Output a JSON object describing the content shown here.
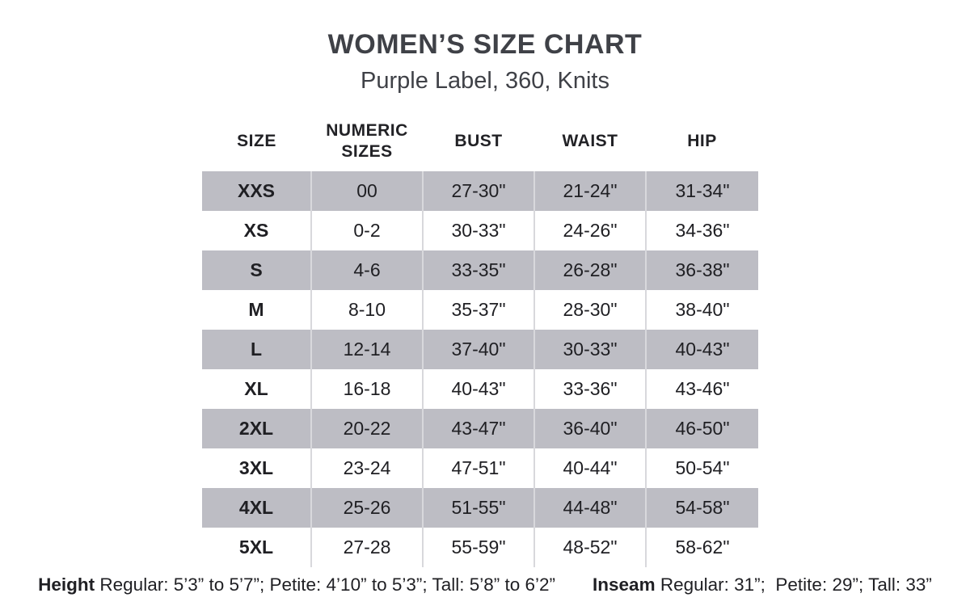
{
  "chart_data": {
    "type": "table",
    "title": "WOMEN’S SIZE CHART",
    "subtitle": "Purple Label, 360, Knits",
    "columns": [
      "SIZE",
      "NUMERIC SIZES",
      "BUST",
      "WAIST",
      "HIP"
    ],
    "rows": [
      [
        "XXS",
        "00",
        "27-30\"",
        "21-24\"",
        "31-34\""
      ],
      [
        "XS",
        "0-2",
        "30-33\"",
        "24-26\"",
        "34-36\""
      ],
      [
        "S",
        "4-6",
        "33-35\"",
        "26-28\"",
        "36-38\""
      ],
      [
        "M",
        "8-10",
        "35-37\"",
        "28-30\"",
        "38-40\""
      ],
      [
        "L",
        "12-14",
        "37-40\"",
        "30-33\"",
        "40-43\""
      ],
      [
        "XL",
        "16-18",
        "40-43\"",
        "33-36\"",
        "43-46\""
      ],
      [
        "2XL",
        "20-22",
        "43-47\"",
        "36-40\"",
        "46-50\""
      ],
      [
        "3XL",
        "23-24",
        "47-51\"",
        "40-44\"",
        "50-54\""
      ],
      [
        "4XL",
        "25-26",
        "51-55\"",
        "44-48\"",
        "54-58\""
      ],
      [
        "5XL",
        "27-28",
        "55-59\"",
        "48-52\"",
        "58-62\""
      ]
    ],
    "layout": {
      "row_shading": "alternating starting with first row shaded",
      "shaded_row_color": "#bdbdc4",
      "divider_color": "#d8d8dc",
      "grid": "vertical dividers only, no outer border"
    }
  },
  "footnotes": {
    "height_label": "Height",
    "height_text": "Regular: 5’3” to 5’7”; Petite: 4’10” to 5’3”; Tall: 5’8” to 6’2”",
    "inseam_label": "Inseam",
    "inseam_text": "Regular: 31”;  Petite: 29”; Tall: 33”"
  }
}
